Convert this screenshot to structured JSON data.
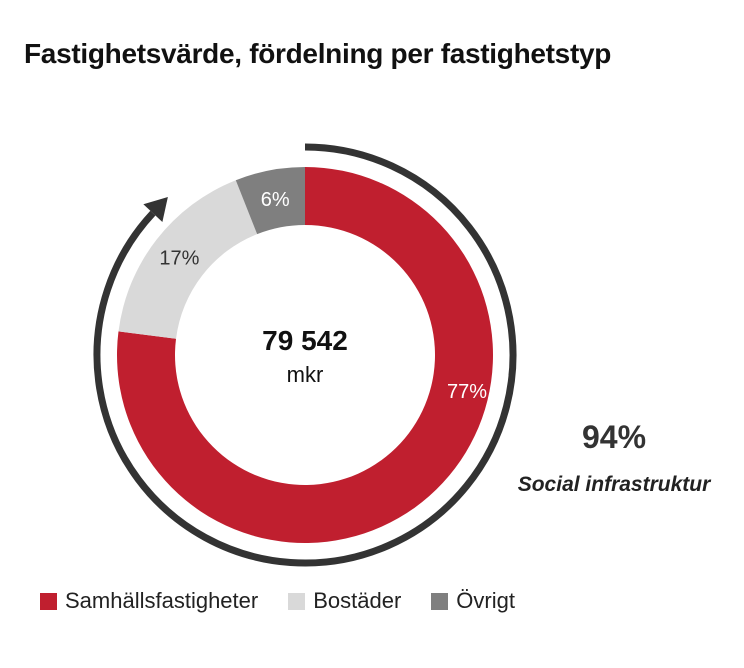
{
  "title": "Fastighetsvärde, fördelning per fastighetstyp",
  "center": {
    "value": "79 542",
    "unit": "mkr"
  },
  "callout": {
    "value": "94%",
    "label": "Social infrastruktur"
  },
  "chart_data": {
    "type": "pie",
    "title": "Fastighetsvärde, fördelning per fastighetstyp",
    "donut": true,
    "total_label": "79 542 mkr",
    "legend_position": "bottom",
    "categories": [
      "Samhällsfastigheter",
      "Bostäder",
      "Övrigt"
    ],
    "values": [
      77,
      17,
      6
    ],
    "labels": [
      "77%",
      "17%",
      "6%"
    ],
    "colors": [
      "#c01f2f",
      "#d9d9d9",
      "#7f7f7f"
    ],
    "label_colors": [
      "#ffffff",
      "#333333",
      "#ffffff"
    ]
  }
}
